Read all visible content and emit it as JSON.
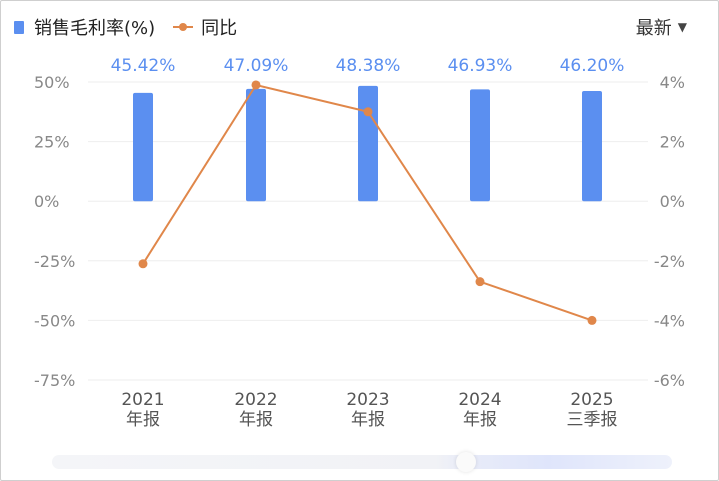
{
  "legend": {
    "bar_label": "销售毛利率(%)",
    "line_label": "同比"
  },
  "view_select": {
    "selected": "最新",
    "caret": "▼"
  },
  "colors": {
    "bar": "#5b8ff0",
    "bar_label": "#5b8ff0",
    "line": "#e0874a",
    "axis_text": "#888888",
    "category_text": "#555555",
    "grid": "#eeeeee"
  },
  "chart_data": {
    "type": "bar+line",
    "categories": [
      [
        "2021",
        "年报"
      ],
      [
        "2022",
        "年报"
      ],
      [
        "2023",
        "年报"
      ],
      [
        "2024",
        "年报"
      ],
      [
        "2025",
        "三季报"
      ]
    ],
    "series": [
      {
        "name": "销售毛利率(%)",
        "type": "bar",
        "axis": "left",
        "values": [
          45.42,
          47.09,
          48.38,
          46.93,
          46.2
        ],
        "labels": [
          "45.42%",
          "47.09%",
          "48.38%",
          "46.93%",
          "46.20%"
        ]
      },
      {
        "name": "同比",
        "type": "line",
        "axis": "right",
        "values": [
          -2.1,
          3.9,
          3.0,
          -2.7,
          -4.0
        ]
      }
    ],
    "y_left": {
      "ticks": [
        50,
        25,
        0,
        -25,
        -50,
        -75
      ],
      "tick_labels": [
        "50%",
        "25%",
        "0%",
        "-25%",
        "-50%",
        "-75%"
      ],
      "range": [
        -75,
        50
      ]
    },
    "y_right": {
      "ticks": [
        4,
        2,
        0,
        -2,
        -4,
        -6
      ],
      "tick_labels": [
        "4%",
        "2%",
        "0%",
        "-2%",
        "-4%",
        "-6%"
      ],
      "range": [
        -6,
        4
      ]
    },
    "grid": true,
    "legend_position": "top-left"
  }
}
